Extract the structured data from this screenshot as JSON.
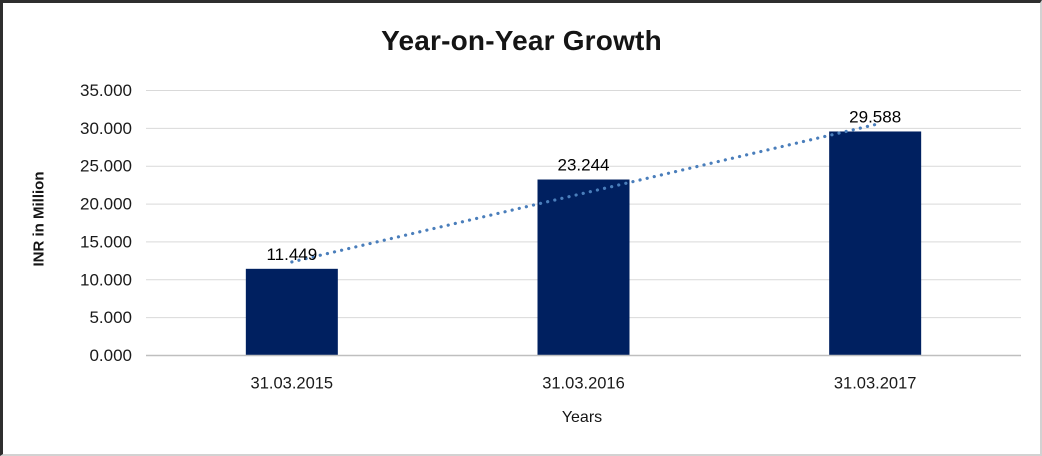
{
  "chart_data": {
    "type": "bar",
    "title": "Year-on-Year Growth",
    "categories": [
      "31.03.2015",
      "31.03.2016",
      "31.03.2017"
    ],
    "values": [
      11.449,
      23.244,
      29.588
    ],
    "data_labels": [
      "11.449",
      "23.244",
      "29.588"
    ],
    "xlabel": "Years",
    "ylabel": "INR in Million",
    "ylim": [
      0,
      35
    ],
    "ytick_step": 5,
    "ytick_labels": [
      "0.000",
      "5.000",
      "10.000",
      "15.000",
      "20.000",
      "25.000",
      "30.000",
      "35.000"
    ],
    "grid": true,
    "legend": "none",
    "bar_color": "#002060",
    "trendline": {
      "type": "linear",
      "style": "dotted",
      "color": "#4A7EBB"
    }
  },
  "colors": {
    "gridline": "#D9D9D9",
    "axis_line": "#BFBFBF",
    "label_text": "#1A1A1A",
    "background": "#FFFFFF"
  }
}
